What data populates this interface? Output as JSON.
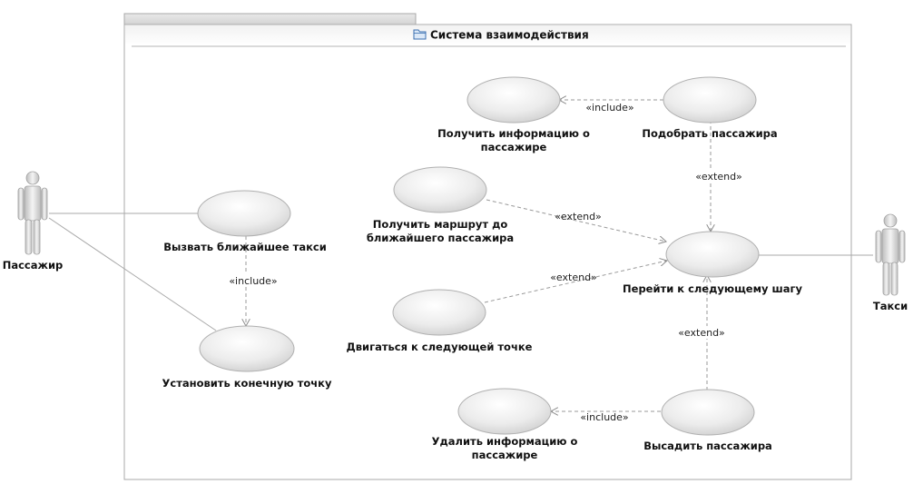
{
  "system": {
    "title": "Система взаимодействия",
    "icon": "folder-icon"
  },
  "actors": [
    {
      "id": "passenger",
      "label": "Пассажир"
    },
    {
      "id": "taxi",
      "label": "Такси"
    }
  ],
  "use_cases": [
    {
      "id": "uc-call",
      "lines": [
        "Вызвать ближайшее такси"
      ]
    },
    {
      "id": "uc-dest",
      "lines": [
        "Установить конечную точку"
      ]
    },
    {
      "id": "uc-getinfo",
      "lines": [
        "Получить информацию о",
        "пассажире"
      ]
    },
    {
      "id": "uc-pickup",
      "lines": [
        "Подобрать пассажира"
      ]
    },
    {
      "id": "uc-route",
      "lines": [
        "Получить маршрут до",
        "ближайшего пассажира"
      ]
    },
    {
      "id": "uc-next",
      "lines": [
        "Перейти к следующему шагу"
      ]
    },
    {
      "id": "uc-move",
      "lines": [
        "Двигаться к следующей точке"
      ]
    },
    {
      "id": "uc-delinfo",
      "lines": [
        "Удалить информацию о",
        "пассажире"
      ]
    },
    {
      "id": "uc-dropoff",
      "lines": [
        "Высадить пассажира"
      ]
    }
  ],
  "associations": [
    {
      "actor": "passenger",
      "use_case": "uc-call"
    },
    {
      "actor": "passenger",
      "use_case": "uc-dest"
    },
    {
      "actor": "taxi",
      "use_case": "uc-next"
    }
  ],
  "relationships": [
    {
      "from": "uc-call",
      "to": "uc-dest",
      "label": "«include»"
    },
    {
      "from": "uc-pickup",
      "to": "uc-getinfo",
      "label": "«include»"
    },
    {
      "from": "uc-pickup",
      "to": "uc-next",
      "label": "«extend»"
    },
    {
      "from": "uc-route",
      "to": "uc-next",
      "label": "«extend»"
    },
    {
      "from": "uc-move",
      "to": "uc-next",
      "label": "«extend»"
    },
    {
      "from": "uc-dropoff",
      "to": "uc-next",
      "label": "«extend»"
    },
    {
      "from": "uc-dropoff",
      "to": "uc-delinfo",
      "label": "«include»"
    }
  ]
}
